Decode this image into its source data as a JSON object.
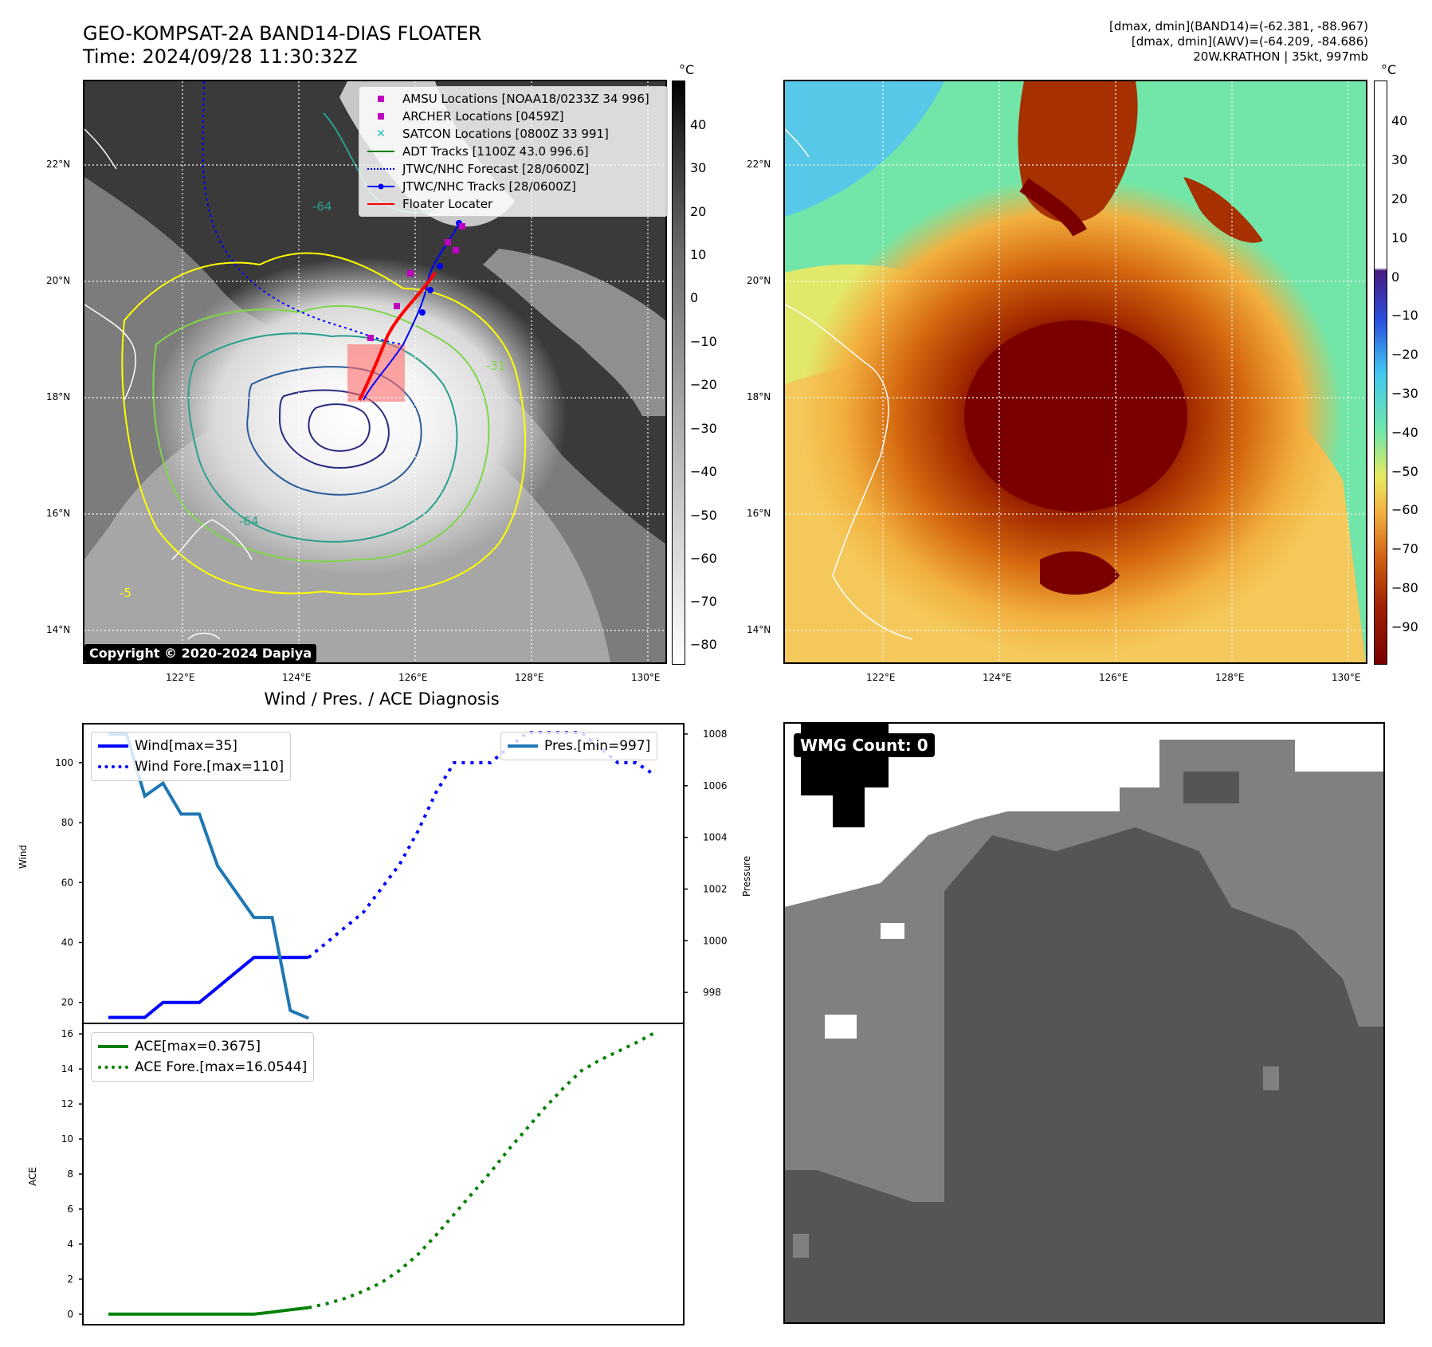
{
  "header": {
    "title_line1": "GEO-KOMPSAT-2A BAND14-DIAS FLOATER",
    "title_line2": "Time: 2024/09/28 11:30:32Z",
    "info_line1": "[dmax, dmin](BAND14)=(-62.381, -88.967)",
    "info_line2": "[dmax, dmin](AWV)=(-64.209, -84.686)",
    "info_line3": "20W.KRATHON | 35kt, 997mb"
  },
  "map_axes": {
    "lat_labels": [
      "22°N",
      "20°N",
      "18°N",
      "16°N",
      "14°N"
    ],
    "lon_labels": [
      "122°E",
      "124°E",
      "126°E",
      "128°E",
      "130°E"
    ]
  },
  "colorbar_left": {
    "unit": "°C",
    "ticks": [
      "40",
      "30",
      "20",
      "10",
      "0",
      "−10",
      "−20",
      "−30",
      "−40",
      "−50",
      "−60",
      "−70",
      "−80"
    ]
  },
  "colorbar_right": {
    "unit": "°C",
    "ticks": [
      "40",
      "30",
      "20",
      "10",
      "0",
      "−10",
      "−20",
      "−30",
      "−40",
      "−50",
      "−60",
      "−70",
      "−80",
      "−90"
    ]
  },
  "legend_map": [
    {
      "label": "AMSU Locations [NOAA18/0233Z 34 996]",
      "icon": "square-marker",
      "color": "#c000c0"
    },
    {
      "label": "ARCHER Locations [0459Z]",
      "icon": "square-marker",
      "color": "#c000c0"
    },
    {
      "label": "SATCON Locations [0800Z 33 991]",
      "icon": "x-marker",
      "color": "#20c0c0"
    },
    {
      "label": "ADT Tracks [1100Z 43.0 996.6]",
      "icon": "solid-line",
      "color": "#008000"
    },
    {
      "label": "JTWC/NHC Forecast [28/0600Z]",
      "icon": "dotted-line",
      "color": "#0000ff"
    },
    {
      "label": "JTWC/NHC Tracks [28/0600Z]",
      "icon": "dot-line",
      "color": "#0000ff"
    },
    {
      "label": "Floater Locater",
      "icon": "solid-line",
      "color": "#ff0000"
    }
  ],
  "copyright": "Copyright © 2020-2024 Dapiya",
  "contour_labels": [
    "-64",
    "-64",
    "-31",
    "-5"
  ],
  "diagnosis_title": "Wind / Pres. / ACE Diagnosis",
  "chart_data": [
    {
      "type": "line",
      "title": "Wind / Pres. / ACE Diagnosis",
      "ylabel": "Wind",
      "y2label": "Pressure",
      "x": [
        0,
        1,
        2,
        3,
        4,
        5,
        6,
        7,
        8,
        9,
        10,
        11,
        12,
        13,
        14,
        15,
        16,
        17,
        18,
        19,
        20,
        21,
        22,
        23,
        24,
        25,
        26,
        27,
        28,
        29,
        30
      ],
      "ylim": [
        13,
        113
      ],
      "y2lim": [
        996.8,
        1008.4
      ],
      "yticks": [
        "20",
        "40",
        "60",
        "80",
        "100"
      ],
      "y2ticks": [
        "998",
        "1000",
        "1002",
        "1004",
        "1006",
        "1008"
      ],
      "series": [
        {
          "name": "Wind[max=35]",
          "axis": "left",
          "style": "solid",
          "color": "#0000ff",
          "x": [
            0,
            1,
            2,
            3,
            4,
            5,
            6,
            7,
            8,
            9,
            10,
            11
          ],
          "values": [
            15,
            15,
            15,
            20,
            20,
            20,
            25,
            30,
            35,
            35,
            35,
            35
          ]
        },
        {
          "name": "Wind Fore.[max=110]",
          "axis": "left",
          "style": "dotted",
          "color": "#0000ff",
          "x": [
            11,
            12,
            13,
            14,
            15,
            16,
            17,
            18,
            19,
            20,
            21,
            22,
            23,
            24,
            25,
            26,
            27,
            28,
            29,
            30
          ],
          "values": [
            35,
            40,
            45,
            50,
            58,
            66,
            77,
            90,
            100,
            100,
            100,
            105,
            110,
            110,
            110,
            110,
            105,
            100,
            100,
            96
          ]
        },
        {
          "name": "Pres.[min=997]",
          "axis": "right",
          "style": "solid",
          "color": "#1f77b4",
          "x": [
            0,
            1,
            2,
            3,
            4,
            5,
            6,
            7,
            8,
            9,
            10,
            11
          ],
          "values": [
            1008,
            1008,
            1005.6,
            1006.1,
            1004.9,
            1004.9,
            1002.9,
            1001.9,
            1000.9,
            1000.9,
            997.3,
            997
          ]
        }
      ],
      "legend": [
        "Wind[max=35]",
        "Wind Fore.[max=110]",
        "Pres.[min=997]"
      ]
    },
    {
      "type": "line",
      "ylabel": "ACE",
      "x": [
        0,
        1,
        2,
        3,
        4,
        5,
        6,
        7,
        8,
        9,
        10,
        11,
        12,
        13,
        14,
        15,
        16,
        17,
        18,
        19,
        20,
        21,
        22,
        23,
        24,
        25,
        26,
        27,
        28,
        29,
        30
      ],
      "ylim": [
        -0.6,
        16.6
      ],
      "yticks": [
        "0",
        "2",
        "4",
        "6",
        "8",
        "10",
        "12",
        "14",
        "16"
      ],
      "series": [
        {
          "name": "ACE[max=0.3675]",
          "style": "solid",
          "color": "#008000",
          "x": [
            0,
            1,
            2,
            3,
            4,
            5,
            6,
            7,
            8,
            9,
            10,
            11
          ],
          "values": [
            0,
            0,
            0,
            0,
            0,
            0,
            0,
            0,
            0,
            0.12,
            0.25,
            0.37
          ]
        },
        {
          "name": "ACE Fore.[max=16.0544]",
          "style": "dotted",
          "color": "#008000",
          "x": [
            11,
            12,
            13,
            14,
            15,
            16,
            17,
            18,
            19,
            20,
            21,
            22,
            23,
            24,
            25,
            26,
            27,
            28,
            29,
            30
          ],
          "values": [
            0.37,
            0.6,
            0.9,
            1.3,
            1.8,
            2.5,
            3.4,
            4.5,
            5.7,
            6.9,
            8.1,
            9.4,
            10.6,
            11.8,
            12.9,
            13.9,
            14.5,
            15.0,
            15.5,
            16.05
          ]
        }
      ],
      "legend": [
        "ACE[max=0.3675]",
        "ACE Fore.[max=16.0544]"
      ]
    }
  ],
  "wmg_label": "WMG Count: 0"
}
